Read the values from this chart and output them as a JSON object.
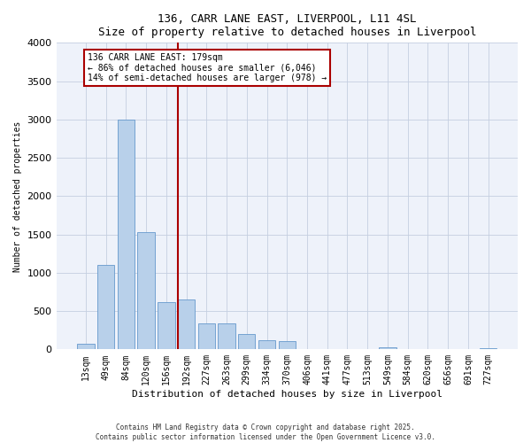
{
  "title_line1": "136, CARR LANE EAST, LIVERPOOL, L11 4SL",
  "title_line2": "Size of property relative to detached houses in Liverpool",
  "xlabel": "Distribution of detached houses by size in Liverpool",
  "ylabel": "Number of detached properties",
  "categories": [
    "13sqm",
    "49sqm",
    "84sqm",
    "120sqm",
    "156sqm",
    "192sqm",
    "227sqm",
    "263sqm",
    "299sqm",
    "334sqm",
    "370sqm",
    "406sqm",
    "441sqm",
    "477sqm",
    "513sqm",
    "549sqm",
    "584sqm",
    "620sqm",
    "656sqm",
    "691sqm",
    "727sqm"
  ],
  "values": [
    75,
    1100,
    3000,
    1530,
    620,
    650,
    340,
    335,
    200,
    120,
    110,
    0,
    0,
    0,
    0,
    30,
    0,
    0,
    0,
    0,
    20
  ],
  "bar_color": "#b8d0ea",
  "bar_edge_color": "#6699cc",
  "vline_x_index": 5,
  "vline_color": "#aa0000",
  "annotation_box_color": "#ffffff",
  "annotation_box_edge": "#aa0000",
  "annotation_line1": "136 CARR LANE EAST: 179sqm",
  "annotation_line2": "← 86% of detached houses are smaller (6,046)",
  "annotation_line3": "14% of semi-detached houses are larger (978) →",
  "background_color": "#eef2fa",
  "ylim": [
    0,
    4000
  ],
  "yticks": [
    0,
    500,
    1000,
    1500,
    2000,
    2500,
    3000,
    3500,
    4000
  ],
  "title_fontsize": 9,
  "label_fontsize": 8,
  "tick_fontsize": 7,
  "footer_line1": "Contains HM Land Registry data © Crown copyright and database right 2025.",
  "footer_line2": "Contains public sector information licensed under the Open Government Licence v3.0."
}
